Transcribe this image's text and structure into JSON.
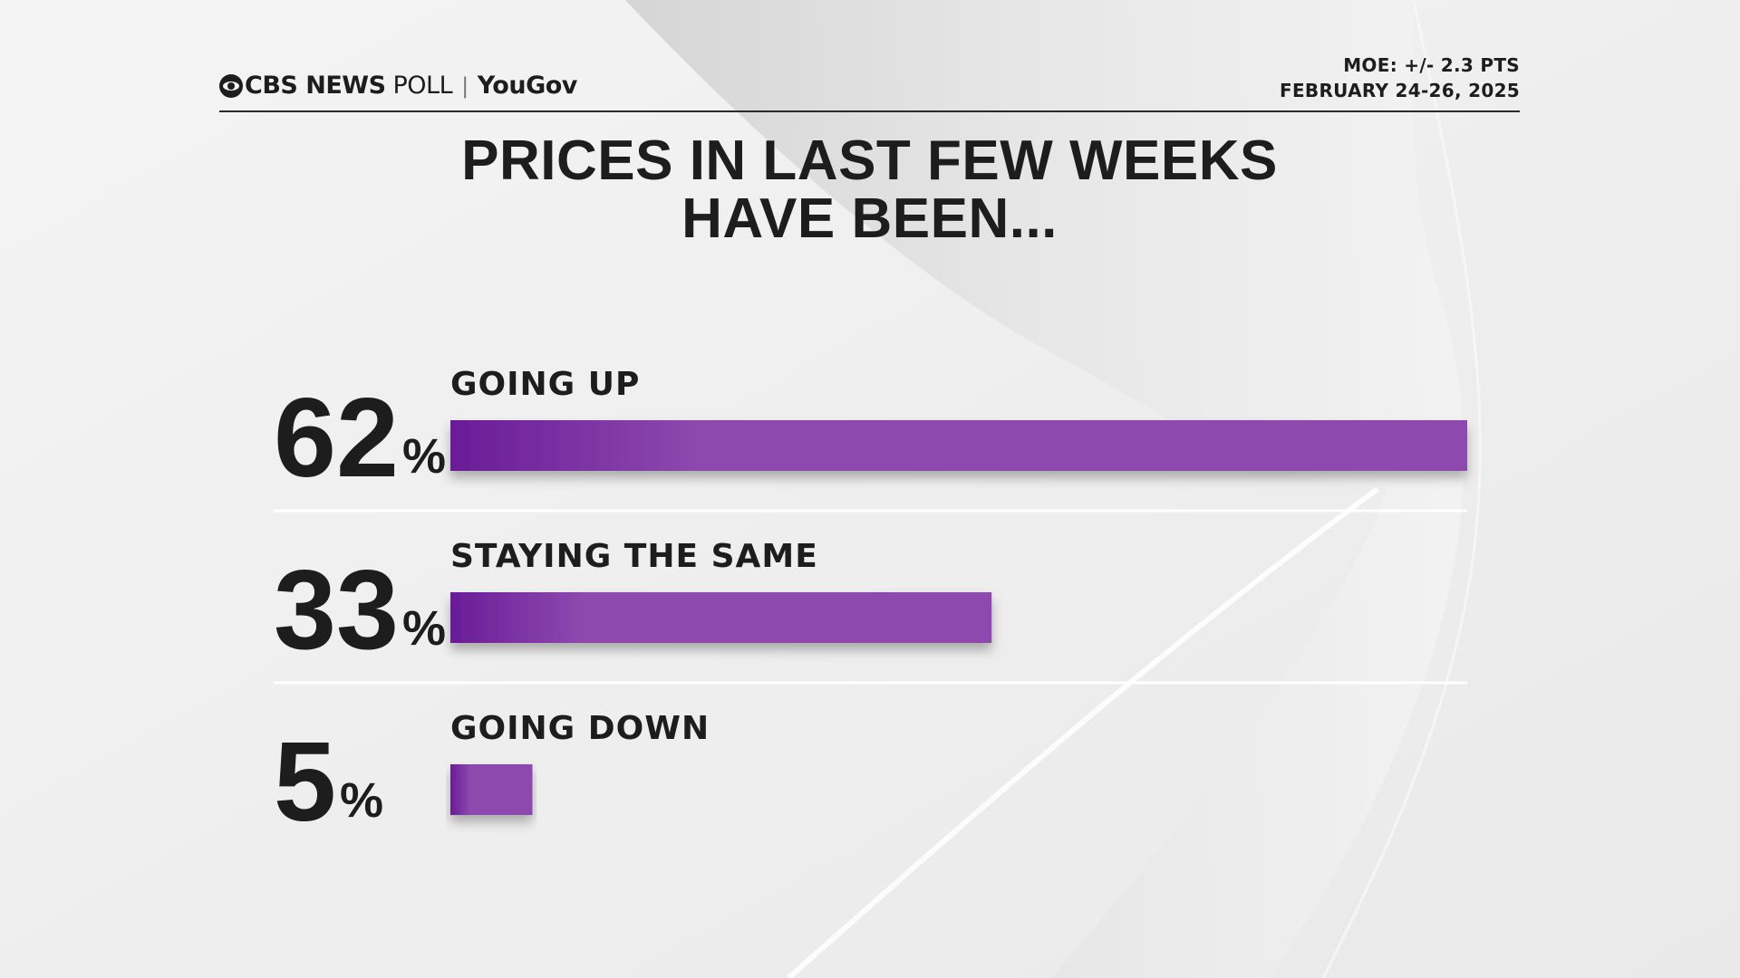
{
  "header": {
    "brand": "CBS NEWS",
    "brand_suffix": "POLL",
    "partner": "YouGov",
    "moe": "MOE: +/- 2.3 PTS",
    "dates": "FEBRUARY 24-26, 2025"
  },
  "colors": {
    "bar": "#8e4aae",
    "bar_dark": "#6a1c98",
    "text": "#1d1d1d"
  },
  "chart_data": {
    "type": "bar",
    "orientation": "horizontal",
    "title": "PRICES IN LAST FEW WEEKS\nHAVE BEEN...",
    "categories": [
      "GOING UP",
      "STAYING THE SAME",
      "GOING DOWN"
    ],
    "values": [
      62,
      33,
      5
    ],
    "value_labels": [
      "62",
      "33",
      "5"
    ],
    "value_suffix": "%",
    "xlim": [
      0,
      62
    ],
    "grid": false,
    "legend": "none"
  }
}
